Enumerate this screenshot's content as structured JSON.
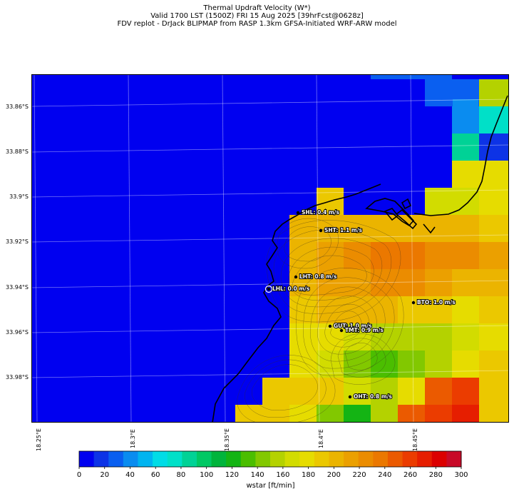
{
  "header": {
    "line1": "Thermal Updraft Velocity (W*)",
    "line2": "Valid 1700 LST (1500Z) FRI 15 Aug 2025 [39hrFcst@0628z]",
    "line3": "FDV replot - DrJack BLIPMAP from RASP 1.3km GFSA-Initiated WRF-ARW model"
  },
  "axes": {
    "y_labels": [
      "33.86°S",
      "33.88°S",
      "33.9°S",
      "33.92°S",
      "33.94°S",
      "33.96°S",
      "33.98°S"
    ],
    "x_labels": [
      "18.25°E",
      "18.3°E",
      "18.35°E",
      "18.4°E",
      "18.45°E"
    ]
  },
  "stations": [
    {
      "label": "SHL: 0.4 m/s"
    },
    {
      "label": "SHT: 1.1 m/s"
    },
    {
      "label": "LHT: 0.8 m/s"
    },
    {
      "label": "LHL: 0.0 m/s"
    },
    {
      "label": "BTO: 1.0 m/s"
    },
    {
      "label": "GUT: 1.0 m/s"
    },
    {
      "label": "TMT: 0.9 m/s"
    },
    {
      "label": "OHT: 0.8 m/s"
    }
  ],
  "colorbar": {
    "label": "wstar [ft/min]",
    "ticks": [
      "0",
      "20",
      "40",
      "60",
      "80",
      "100",
      "120",
      "140",
      "160",
      "180",
      "200",
      "220",
      "240",
      "260",
      "280",
      "300"
    ],
    "colors": [
      "#0000f0",
      "#0d33e6",
      "#0a5ff0",
      "#0a8cf0",
      "#00b4f0",
      "#00dce6",
      "#00e0c8",
      "#00d296",
      "#00c864",
      "#00b43c",
      "#14b414",
      "#4bbe00",
      "#82c800",
      "#b4d200",
      "#d2dc00",
      "#e6dc00",
      "#ebc800",
      "#ebb400",
      "#eba000",
      "#eb8c00",
      "#eb7800",
      "#eb5a00",
      "#eb3c00",
      "#e61e00",
      "#dc0000",
      "#c80a28"
    ]
  }
}
